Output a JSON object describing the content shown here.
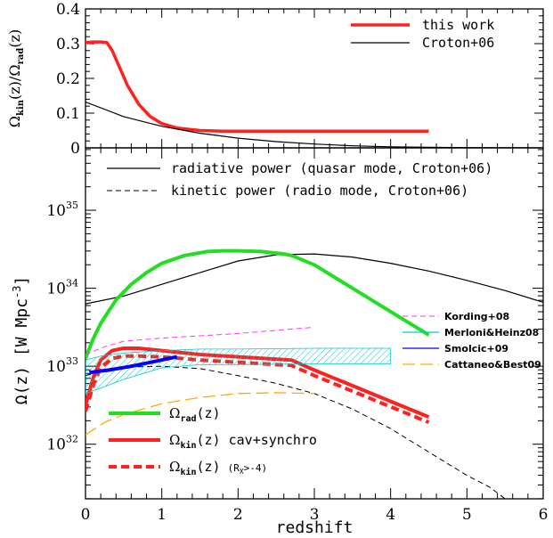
{
  "chart_data": [
    {
      "type": "line",
      "panel": "top",
      "ylabel_main": "Ω",
      "ylabel_kin": "kin",
      "ylabel_mid": "(z)/Ω",
      "ylabel_rad": "rad",
      "ylabel_end": "(z)",
      "xlim": [
        0,
        6
      ],
      "ylim": [
        0,
        0.4
      ],
      "yticks": [
        0,
        0.1,
        0.2,
        0.3,
        0.4
      ],
      "ytick_labels": [
        "0",
        "0.1",
        "0.2",
        "0.3",
        "0.4"
      ],
      "legend_position": "top-right",
      "series": [
        {
          "name": "this work",
          "color": "#ff2020",
          "style": "solid-thick",
          "x": [
            0,
            0.1,
            0.2,
            0.28,
            0.35,
            0.45,
            0.55,
            0.7,
            0.85,
            1.0,
            1.2,
            1.5,
            1.8,
            2.0,
            3.0,
            4.0,
            4.5
          ],
          "y": [
            0.303,
            0.305,
            0.305,
            0.303,
            0.28,
            0.23,
            0.18,
            0.125,
            0.09,
            0.07,
            0.057,
            0.05,
            0.048,
            0.048,
            0.048,
            0.048,
            0.048
          ]
        },
        {
          "name": "Croton+06",
          "color": "#000000",
          "style": "solid-thin",
          "x": [
            0,
            0.5,
            1.0,
            1.5,
            2.0,
            2.5,
            3.0,
            3.5,
            4.0,
            4.5,
            5.0,
            5.5,
            6.0
          ],
          "y": [
            0.132,
            0.09,
            0.062,
            0.042,
            0.028,
            0.018,
            0.011,
            0.006,
            0.003,
            0.0015,
            0.0007,
            0.0003,
            0.0001
          ]
        }
      ]
    },
    {
      "type": "line",
      "panel": "bottom",
      "xlabel": "redshift",
      "ylabel": "Ω(z)  [W Mpc",
      "ylabel_sup": "-3",
      "ylabel_close": "]",
      "xlim": [
        0,
        6
      ],
      "ylim": [
        31.3,
        35.8
      ],
      "y_scale": "log",
      "xticks": [
        0,
        1,
        2,
        3,
        4,
        5,
        6
      ],
      "xtick_labels": [
        "0",
        "1",
        "2",
        "3",
        "4",
        "5",
        "6"
      ],
      "yticks": [
        32,
        33,
        34,
        35
      ],
      "ytick_base": "10",
      "ytick_exponents": [
        "32",
        "33",
        "34",
        "35"
      ],
      "series": [
        {
          "name": "radiative power (quasar mode, Croton+06)",
          "color": "#000000",
          "style": "solid-thin",
          "x": [
            0,
            0.5,
            1.0,
            1.5,
            2.0,
            2.5,
            3.0,
            3.5,
            4.0,
            4.5,
            5.0,
            5.5,
            6.0
          ],
          "log_y": [
            33.8,
            33.9,
            34.05,
            34.2,
            34.35,
            34.43,
            34.44,
            34.4,
            34.32,
            34.22,
            34.1,
            33.97,
            33.82
          ]
        },
        {
          "name": "kinetic power (radio mode, Croton+06)",
          "color": "#000000",
          "style": "dashed-thin",
          "x": [
            0,
            0.3,
            0.6,
            1.0,
            1.5,
            2.0,
            2.5,
            3.0,
            3.5,
            4.0,
            4.5,
            5.0,
            5.3,
            5.5
          ],
          "log_y": [
            32.88,
            32.95,
            32.99,
            33.0,
            32.97,
            32.88,
            32.78,
            32.65,
            32.45,
            32.2,
            31.9,
            31.6,
            31.45,
            31.3
          ]
        },
        {
          "name": "Ω_rad(z)",
          "color": "#22dd22",
          "style": "solid-thick",
          "x": [
            0,
            0.1,
            0.2,
            0.4,
            0.6,
            0.8,
            1.0,
            1.3,
            1.6,
            1.8,
            2.0,
            2.3,
            2.6,
            2.7,
            3.0,
            3.5,
            4.0,
            4.5
          ],
          "log_y": [
            33.1,
            33.35,
            33.55,
            33.85,
            34.05,
            34.2,
            34.32,
            34.42,
            34.47,
            34.48,
            34.48,
            34.47,
            34.44,
            34.42,
            34.3,
            34.0,
            33.7,
            33.4
          ]
        },
        {
          "name": "Ω_kin(z) cav+synchro",
          "color": "#ff2020",
          "style": "solid-thick",
          "x": [
            0,
            0.1,
            0.2,
            0.35,
            0.5,
            0.7,
            1.0,
            1.5,
            2.0,
            2.7,
            3.0,
            3.5,
            4.0,
            4.5
          ],
          "log_y": [
            32.5,
            32.85,
            33.08,
            33.2,
            33.23,
            33.23,
            33.2,
            33.15,
            33.12,
            33.08,
            32.95,
            32.75,
            32.55,
            32.35
          ]
        },
        {
          "name": "Ω_kin(z) (R_X>-4)",
          "color": "#ff2020",
          "style": "dashed-thick",
          "x": [
            0,
            0.1,
            0.2,
            0.35,
            0.5,
            0.7,
            1.0,
            1.5,
            2.0,
            2.7,
            3.0,
            3.5,
            4.0,
            4.5
          ],
          "log_y": [
            32.42,
            32.75,
            32.98,
            33.1,
            33.13,
            33.13,
            33.12,
            33.08,
            33.05,
            33.01,
            32.88,
            32.68,
            32.48,
            32.28
          ]
        },
        {
          "name": "Kording+08",
          "color": "#ff33ff",
          "style": "dashed-thin",
          "x": [
            0,
            0.25,
            0.5,
            1.0,
            2.0,
            3.0
          ],
          "log_y": [
            33.15,
            33.25,
            33.32,
            33.36,
            33.42,
            33.5
          ]
        },
        {
          "name": "Merloni&Heinz08",
          "color": "#00cccc",
          "style": "band",
          "x": [
            0,
            0.2,
            0.5,
            1.0,
            1.5,
            2.0,
            3.0,
            4.0
          ],
          "log_upper": [
            33.08,
            33.13,
            33.17,
            33.2,
            33.22,
            33.22,
            33.23,
            33.23
          ],
          "log_lower": [
            32.65,
            32.72,
            32.83,
            32.98,
            33.02,
            33.02,
            33.03,
            33.03
          ]
        },
        {
          "name": "Smolcic+09",
          "color": "#0000ff",
          "style": "solid-thick",
          "x": [
            0.05,
            0.3,
            0.6,
            0.9,
            1.2
          ],
          "log_y": [
            32.92,
            32.95,
            33.0,
            33.06,
            33.12
          ]
        },
        {
          "name": "Cattaneo&Best09",
          "color": "#ffaa00",
          "style": "longdash",
          "x": [
            0,
            0.25,
            0.5,
            1.0,
            1.5,
            2.0,
            2.5,
            3.0
          ],
          "log_y": [
            32.12,
            32.28,
            32.38,
            32.52,
            32.6,
            32.65,
            32.66,
            32.65
          ]
        }
      ]
    }
  ],
  "legend_top": [
    {
      "label": "this work",
      "color": "#ff2020",
      "style": "solid-thick"
    },
    {
      "label": "Croton+06",
      "color": "#000000",
      "style": "solid-thin"
    }
  ],
  "legend_croton": [
    {
      "label": "radiative power (quasar mode, Croton+06)",
      "style": "solid-thin"
    },
    {
      "label": "kinetic power (radio mode, Croton+06)",
      "style": "dashed-thin"
    }
  ],
  "legend_obs": [
    {
      "label": "Kording+08",
      "color": "#ff33ff",
      "style": "dashed-thin"
    },
    {
      "label": "Merloni&Heinz08",
      "color": "#00cccc",
      "style": "solid-thin"
    },
    {
      "label": "Smolcic+09",
      "color": "#0000ff",
      "style": "solid-thin"
    },
    {
      "label": "Cattaneo&Best09",
      "color": "#ffaa00",
      "style": "longdash"
    }
  ],
  "legend_omega": [
    {
      "main": "Ω",
      "sub": "rad",
      "rest": "(z)",
      "extra": "",
      "extra_sub": "",
      "extra_end": "",
      "color": "#22dd22",
      "style": "solid-thick"
    },
    {
      "main": "Ω",
      "sub": "kin",
      "rest": "(z) cav+synchro",
      "extra": "",
      "extra_sub": "",
      "extra_end": "",
      "color": "#ff2020",
      "style": "solid-thick"
    },
    {
      "main": "Ω",
      "sub": "kin",
      "rest": "(z)",
      "extra": "(R",
      "extra_sub": "X",
      "extra_end": ">-4)",
      "color": "#ff2020",
      "style": "dashed-thick"
    }
  ]
}
